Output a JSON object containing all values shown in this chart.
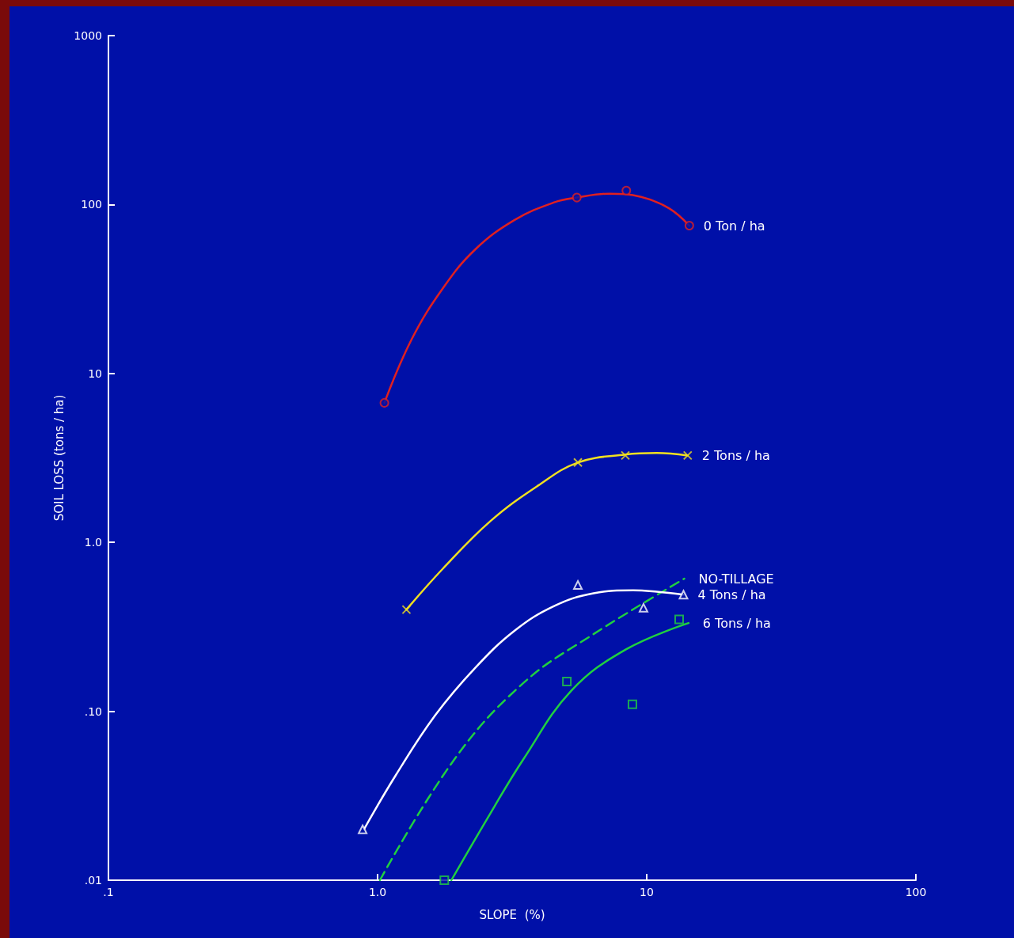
{
  "chart_data": {
    "type": "line",
    "xlabel": "SLOPE  (%)",
    "ylabel": "SOIL LOSS (tons / ha)",
    "log": "xy",
    "xlim": [
      0.1,
      100
    ],
    "ylim": [
      0.01,
      1000
    ],
    "xticks": [
      {
        "value": 0.1,
        "label": ".1"
      },
      {
        "value": 1,
        "label": "1.0"
      },
      10,
      100
    ],
    "yticks": [
      {
        "value": 0.01,
        "label": ".01"
      },
      {
        "value": 0.1,
        "label": ".10"
      },
      {
        "value": 1,
        "label": "1.0"
      },
      10,
      100,
      1000
    ],
    "grid": false,
    "series": [
      {
        "name": "0 Ton / ha",
        "color": "#e02020",
        "marker": "none",
        "line_style": "solid",
        "x": [
          1.06,
          1.34,
          1.75,
          2.3,
          3.23,
          4.53,
          5.51,
          7.27,
          9.53,
          12.1,
          14.4
        ],
        "values": [
          6.7,
          16,
          32,
          54,
          81,
          103,
          110,
          116,
          111,
          95,
          75
        ]
      },
      {
        "type": "scatter",
        "color": "#e02020",
        "marker": "circle",
        "x": [
          1.06,
          5.5,
          8.4,
          14.4
        ],
        "values": [
          6.7,
          110,
          121,
          75
        ]
      },
      {
        "name": "2 Tons / ha",
        "color": "#f0e020",
        "marker": "none",
        "line_style": "solid",
        "x": [
          1.28,
          1.75,
          2.63,
          3.95,
          5.55,
          8.33,
          10.9,
          14.2
        ],
        "values": [
          0.4,
          0.7,
          1.34,
          2.17,
          2.97,
          3.31,
          3.38,
          3.27
        ]
      },
      {
        "type": "scatter",
        "color": "#f0e020",
        "marker": "cross",
        "x": [
          1.28,
          5.55,
          8.33,
          14.2
        ],
        "values": [
          0.4,
          2.97,
          3.27,
          3.27
        ]
      },
      {
        "name": "NO-TILLAGE",
        "color": "#20d040",
        "marker": "none",
        "line_style": "dashed",
        "x": [
          1.02,
          1.93,
          3.48,
          6.27,
          13.8
        ],
        "values": [
          0.01,
          0.052,
          0.147,
          0.283,
          0.61
        ]
      },
      {
        "name": "4 Tons / ha",
        "color": "#ffffff",
        "marker": "none",
        "line_style": "solid",
        "x": [
          0.89,
          1.17,
          1.64,
          2.3,
          3.23,
          4.53,
          6.35,
          8.91,
          10.9,
          13.7
        ],
        "values": [
          0.02,
          0.042,
          0.095,
          0.18,
          0.3,
          0.42,
          0.5,
          0.52,
          0.51,
          0.49
        ]
      },
      {
        "type": "scatter",
        "color": "#ffffff",
        "marker": "triangle",
        "x": [
          0.88,
          5.55,
          9.73,
          13.7
        ],
        "values": [
          0.02,
          0.56,
          0.41,
          0.49
        ]
      },
      {
        "name": "6 Tons / ha",
        "color": "#20d040",
        "marker": "none",
        "line_style": "solid",
        "x": [
          1.88,
          2.63,
          3.48,
          5.26,
          8.4,
          14.3
        ],
        "values": [
          0.01,
          0.025,
          0.052,
          0.133,
          0.233,
          0.333
        ]
      },
      {
        "type": "scatter",
        "color": "#20d040",
        "marker": "square",
        "x": [
          1.77,
          5.05,
          8.85,
          13.2
        ],
        "values": [
          0.01,
          0.15,
          0.11,
          0.35
        ]
      }
    ]
  }
}
